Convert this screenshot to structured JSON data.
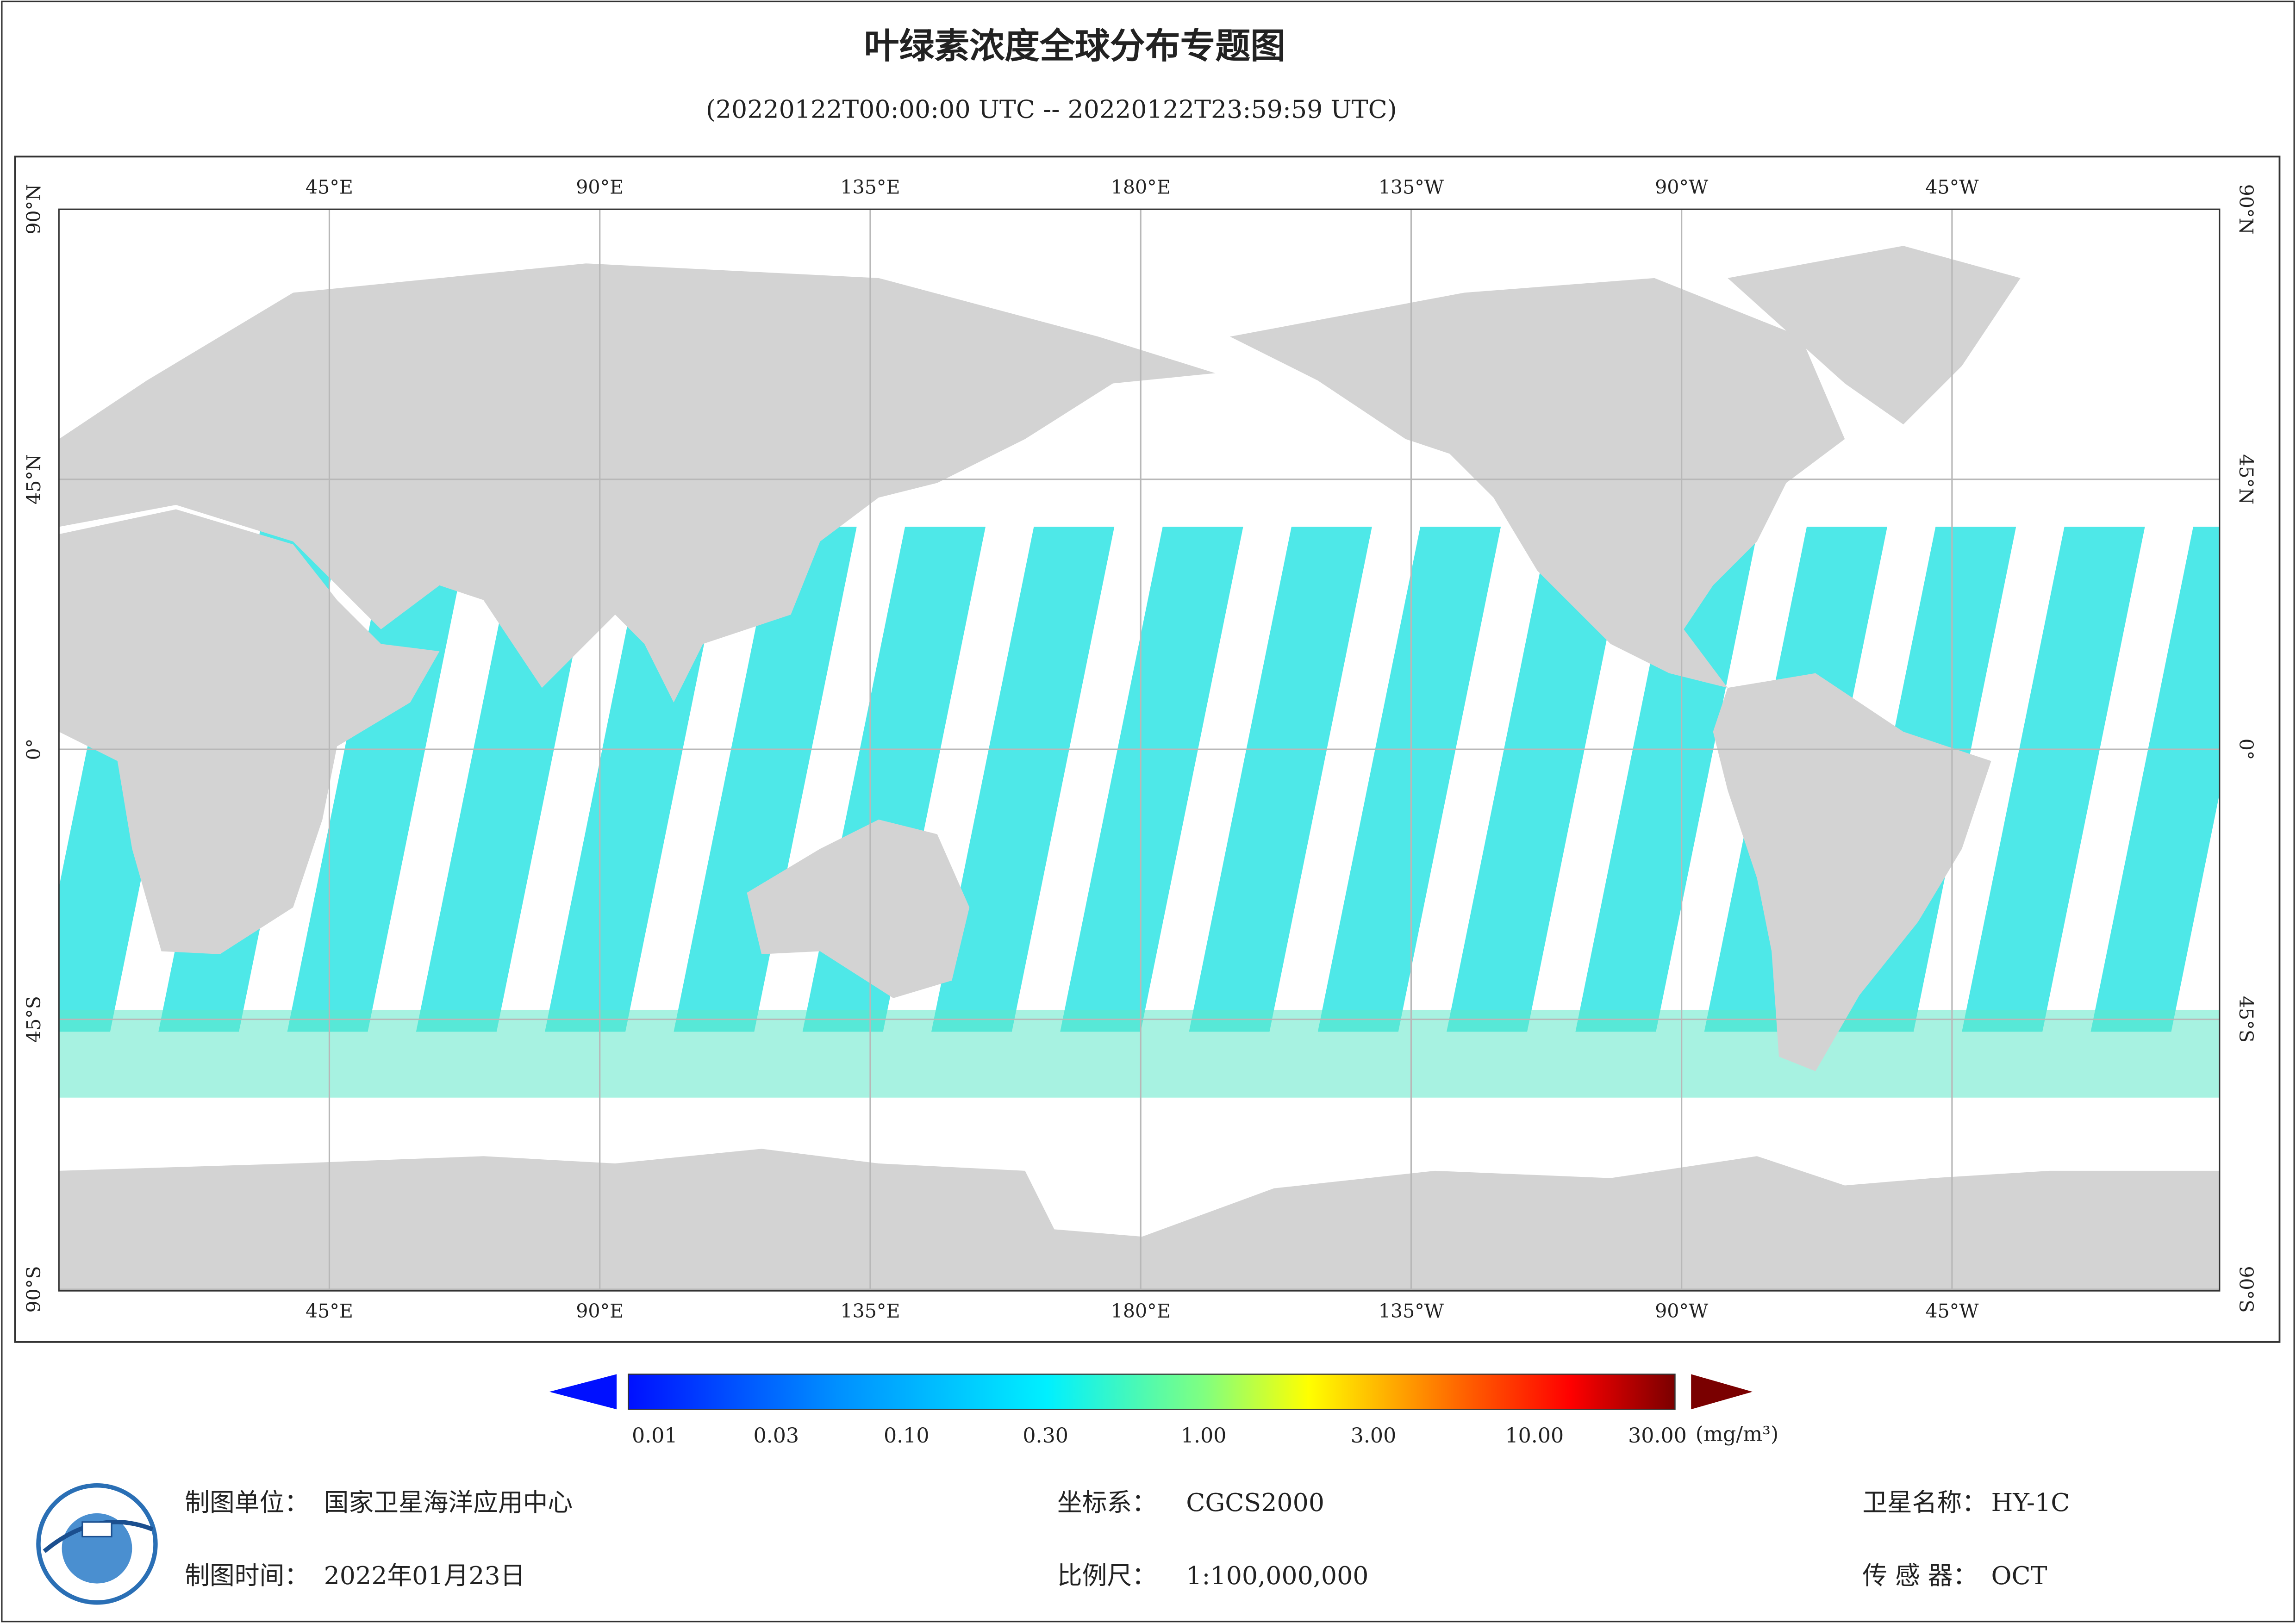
{
  "header": {
    "title": "叶绿素浓度全球分布专题图",
    "subtitle": "(20220122T00:00:00 UTC -- 20220122T23:59:59 UTC)"
  },
  "map": {
    "longitude_labels": [
      "45°E",
      "90°E",
      "135°E",
      "180°E",
      "135°W",
      "90°W",
      "45°W"
    ],
    "latitude_labels": [
      "90°N",
      "45°N",
      "0°",
      "45°S",
      "90°S"
    ]
  },
  "colorbar": {
    "labels": [
      "0.01",
      "0.03",
      "0.10",
      "0.30",
      "1.00",
      "3.00",
      "10.00",
      "30.00"
    ],
    "unit": "(mg/m³)"
  },
  "footer": {
    "items": [
      {
        "label": "制图单位：",
        "value": "国家卫星海洋应用中心"
      },
      {
        "label": "制图时间：",
        "value": "2022年01月23日"
      },
      {
        "label": "坐标系：",
        "value": "CGCS2000"
      },
      {
        "label": "比例尺：",
        "value": "1:100,000,000"
      },
      {
        "label": "卫星名称：",
        "value": "HY-1C"
      },
      {
        "label": "传 感 器：",
        "value": "OCT"
      }
    ]
  }
}
